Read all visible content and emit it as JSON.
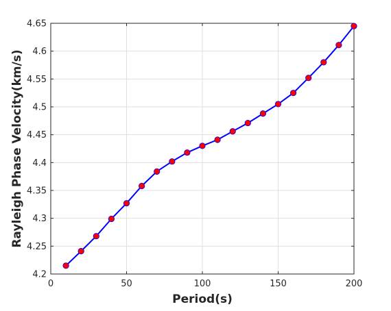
{
  "chart_data": {
    "type": "line",
    "title": "",
    "xlabel": "Period(s)",
    "ylabel": "Rayleigh Phase Velocity(km/s)",
    "xlim": [
      0,
      200
    ],
    "ylim": [
      4.2,
      4.65
    ],
    "xticks": [
      0,
      50,
      100,
      150,
      200
    ],
    "yticks": [
      4.2,
      4.25,
      4.3,
      4.35,
      4.4,
      4.45,
      4.5,
      4.55,
      4.6,
      4.65
    ],
    "xtick_labels": [
      "0",
      "50",
      "100",
      "150",
      "200"
    ],
    "ytick_labels": [
      "4.2",
      "4.25",
      "4.3",
      "4.35",
      "4.4",
      "4.45",
      "4.5",
      "4.55",
      "4.6",
      "4.65"
    ],
    "grid": true,
    "line_color": "#0000ff",
    "marker_color": "#ff0000",
    "series": [
      {
        "x": [
          10,
          20,
          30,
          40,
          50,
          60,
          70,
          80,
          90,
          100,
          110,
          120,
          130,
          140,
          150,
          160,
          170,
          180,
          190,
          200
        ],
        "y": [
          4.215,
          4.241,
          4.268,
          4.299,
          4.327,
          4.358,
          4.384,
          4.402,
          4.418,
          4.43,
          4.441,
          4.456,
          4.471,
          4.488,
          4.505,
          4.525,
          4.552,
          4.58,
          4.611,
          4.645
        ]
      }
    ]
  }
}
